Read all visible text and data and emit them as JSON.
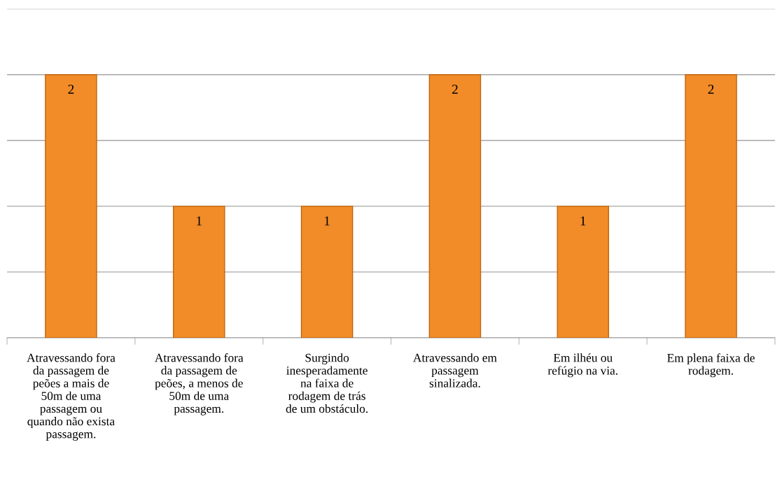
{
  "chart_data": {
    "type": "bar",
    "categories": [
      "Atravessando fora da passagem de peões a mais de 50m de uma passagem ou quando não exista passagem.",
      "Atravessando fora da passagem de peões, a menos de 50m de uma passagem.",
      "Surgindo inesperadamente na faixa de rodagem de trás de um obstáculo.",
      "Atravessando em passagem sinalizada.",
      "Em ilhéu ou refúgio na via.",
      "Em plena faixa de rodagem."
    ],
    "values": [
      2,
      1,
      1,
      2,
      1,
      2
    ],
    "color": "#f28c28",
    "data_labels": true,
    "ylim": [
      0,
      2.5
    ],
    "yticks": [
      {
        "value": 0,
        "label": null
      },
      {
        "value": 0.5,
        "label": null
      },
      {
        "value": 1,
        "label": null
      },
      {
        "value": 1.5,
        "label": null
      },
      {
        "value": 2,
        "label": null
      },
      {
        "value": 2.5,
        "label": null
      }
    ],
    "tick_labels": "x",
    "grid": "y"
  }
}
